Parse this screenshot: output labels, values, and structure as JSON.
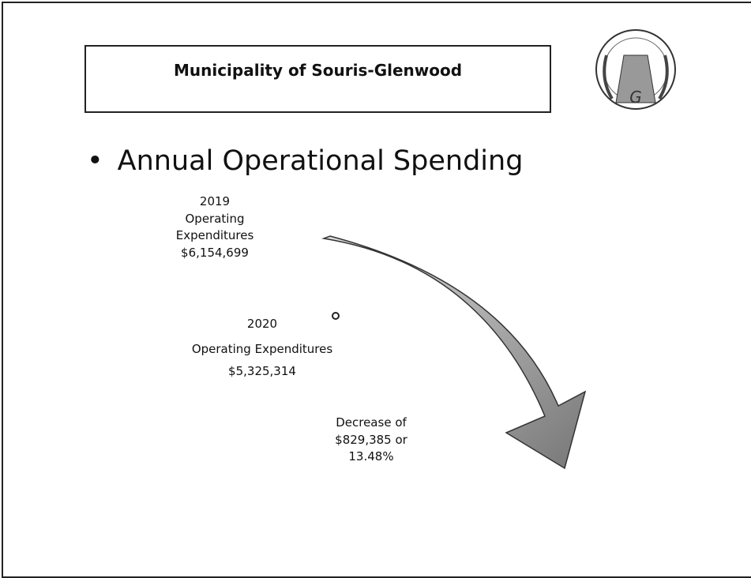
{
  "header": {
    "title": "Municipality of Souris-Glenwood"
  },
  "bullet": "Annual Operational Spending",
  "blocks": [
    {
      "lines": [
        "2019",
        "Operating",
        "Expenditures",
        "$6,154,699"
      ]
    },
    {
      "lines": [
        "2020",
        "Operating Expenditures",
        "$5,325,314"
      ]
    },
    {
      "lines": [
        "Decrease of",
        "$829,385 or",
        "13.48%"
      ]
    }
  ]
}
